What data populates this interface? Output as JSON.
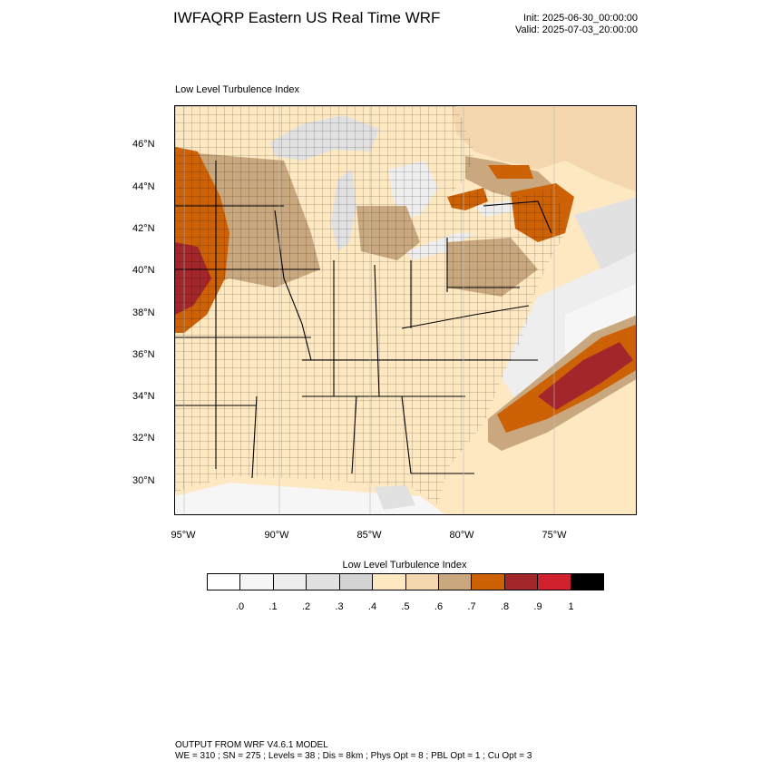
{
  "header": {
    "title": "IWFAQRP Eastern US Real Time WRF",
    "init": "Init: 2025-06-30_00:00:00",
    "valid": "Valid: 2025-07-03_20:00:00"
  },
  "plot": {
    "subtitle": "Low Level Turbulence Index",
    "lat_labels": [
      "46°N",
      "44°N",
      "42°N",
      "40°N",
      "38°N",
      "36°N",
      "34°N",
      "32°N",
      "30°N"
    ],
    "lon_labels": [
      "95°W",
      "90°W",
      "85°W",
      "80°W",
      "75°W"
    ]
  },
  "legend": {
    "title": "Low Level Turbulence Index",
    "colors": [
      "#ffffff",
      "#f6f6f6",
      "#eeeeee",
      "#e1e1e1",
      "#d3d3d3",
      "#fde8c2",
      "#f4d7ae",
      "#caa87f",
      "#cc6106",
      "#a3262a",
      "#d1202e",
      "#000000"
    ],
    "ticks": [
      ".0",
      ".1",
      ".2",
      ".3",
      ".4",
      ".5",
      ".6",
      ".7",
      ".8",
      ".9",
      "1"
    ]
  },
  "footer": {
    "line1": "OUTPUT FROM WRF V4.6.1 MODEL",
    "line2": "WE = 310 ; SN = 275 ; Levels = 38 ; Dis = 8km ; Phys Opt = 8 ; PBL Opt = 1 ; Cu Opt = 3"
  }
}
